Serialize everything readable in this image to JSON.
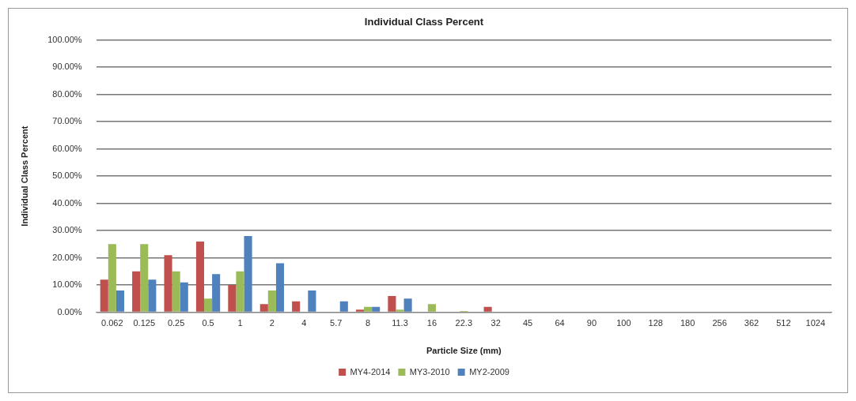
{
  "chart_data": {
    "type": "bar",
    "title": "Individual Class Percent",
    "xlabel": "Particle Size (mm)",
    "ylabel": "Individual Class Percent",
    "categories": [
      "0.062",
      "0.125",
      "0.25",
      "0.5",
      "1",
      "2",
      "4",
      "5.7",
      "8",
      "11.3",
      "16",
      "22.3",
      "32",
      "45",
      "64",
      "90",
      "100",
      "128",
      "180",
      "256",
      "362",
      "512",
      "1024"
    ],
    "series": [
      {
        "name": "MY4-2014",
        "color": "#c0504d",
        "values": [
          12,
          15,
          21,
          26,
          10,
          3,
          4,
          0,
          1,
          6,
          0,
          0,
          2,
          0,
          0,
          0,
          0,
          0,
          0,
          0,
          0,
          0,
          0
        ]
      },
      {
        "name": "MY3-2010",
        "color": "#9bbb59",
        "values": [
          25,
          25,
          15,
          5,
          15,
          8,
          0,
          0,
          2,
          1,
          3,
          0.5,
          0,
          0,
          0,
          0,
          0,
          0,
          0,
          0,
          0,
          0,
          0
        ]
      },
      {
        "name": "MY2-2009",
        "color": "#4f81bd",
        "values": [
          8,
          12,
          11,
          14,
          28,
          18,
          8,
          4,
          2,
          5,
          0,
          0,
          0,
          0,
          0,
          0,
          0,
          0,
          0,
          0,
          0,
          0,
          0
        ]
      }
    ],
    "ylim": [
      0,
      100
    ],
    "yticks": [
      {
        "value": 0,
        "label": "0.00%"
      },
      {
        "value": 10,
        "label": "10.00%"
      },
      {
        "value": 20,
        "label": "20.00%"
      },
      {
        "value": 30,
        "label": "30.00%"
      },
      {
        "value": 40,
        "label": "40.00%"
      },
      {
        "value": 50,
        "label": "50.00%"
      },
      {
        "value": 60,
        "label": "60.00%"
      },
      {
        "value": 70,
        "label": "70.00%"
      },
      {
        "value": 80,
        "label": "80.00%"
      },
      {
        "value": 90,
        "label": "90.00%"
      },
      {
        "value": 100,
        "label": "100.00%"
      }
    ],
    "grid": "y",
    "legend": "bottom"
  }
}
